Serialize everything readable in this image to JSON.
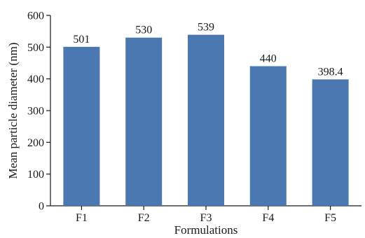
{
  "chart_data": {
    "type": "bar",
    "categories": [
      "F1",
      "F2",
      "F3",
      "F4",
      "F5"
    ],
    "values": [
      501,
      530,
      539,
      440,
      398.4
    ],
    "data_labels": [
      "501",
      "530",
      "539",
      "440",
      "398.4"
    ],
    "xlabel": "Formulations",
    "ylabel": "Mean particle diameter (nm)",
    "ylim": [
      0,
      600
    ],
    "yticks": [
      0,
      100,
      200,
      300,
      400,
      500,
      600
    ],
    "grid": false,
    "bar_color": "#4b78b0"
  }
}
